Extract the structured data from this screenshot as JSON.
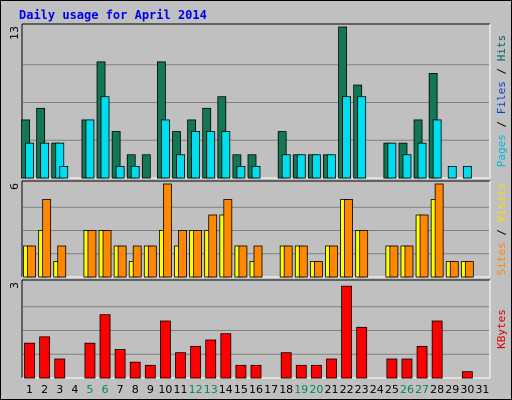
{
  "chart_data": {
    "type": "bar",
    "title": "Daily usage for April 2014",
    "categories": [
      "1",
      "2",
      "3",
      "4",
      "5",
      "6",
      "7",
      "8",
      "9",
      "10",
      "11",
      "12",
      "13",
      "14",
      "15",
      "16",
      "17",
      "18",
      "19",
      "20",
      "21",
      "22",
      "23",
      "24",
      "25",
      "26",
      "27",
      "28",
      "29",
      "30",
      "31"
    ],
    "weekend_days": [
      "5",
      "6",
      "12",
      "13",
      "19",
      "20",
      "26",
      "27"
    ],
    "panels": [
      {
        "id": "top",
        "ymax": 13,
        "ymax_label": "13",
        "side_labels": [
          {
            "text": "Hits",
            "color": "#006666"
          },
          {
            "text": " / ",
            "color": "#000000"
          },
          {
            "text": "Files",
            "color": "#0044cc"
          },
          {
            "text": " / ",
            "color": "#000000"
          },
          {
            "text": "Pages",
            "color": "#00bbdd"
          }
        ],
        "series": [
          {
            "name": "Hits",
            "color": "#117755",
            "values": [
              5,
              6,
              3,
              0,
              5,
              10,
              4,
              2,
              2,
              10,
              4,
              5,
              6,
              7,
              2,
              2,
              0,
              4,
              2,
              2,
              2,
              13,
              8,
              0,
              3,
              3,
              5,
              9,
              0,
              0,
              0
            ]
          },
          {
            "name": "Files",
            "color": "#00ddee",
            "values": [
              3,
              3,
              3,
              0,
              5,
              7,
              1,
              1,
              0,
              5,
              2,
              4,
              4,
              4,
              1,
              1,
              0,
              2,
              2,
              2,
              2,
              7,
              7,
              0,
              3,
              2,
              3,
              5,
              1,
              1,
              0
            ]
          },
          {
            "name": "Pages",
            "color": "#00ddee",
            "values": [
              0,
              0,
              1,
              0,
              0,
              0,
              0,
              0,
              0,
              0,
              0,
              0,
              0,
              0,
              0,
              0,
              0,
              0,
              0,
              0,
              0,
              0,
              0,
              0,
              0,
              0,
              0,
              0,
              0,
              0,
              0
            ]
          }
        ]
      },
      {
        "id": "middle",
        "ymax": 6,
        "ymax_label": "6",
        "side_labels": [
          {
            "text": "Visits",
            "color": "#ffdd00"
          },
          {
            "text": " / ",
            "color": "#000000"
          },
          {
            "text": "Sites",
            "color": "#ff8800"
          }
        ],
        "series": [
          {
            "name": "Visits",
            "color": "#ffff00",
            "values": [
              2,
              3,
              1,
              0,
              3,
              3,
              2,
              1,
              2,
              3,
              2,
              3,
              3,
              4,
              2,
              1,
              0,
              2,
              2,
              1,
              2,
              5,
              3,
              0,
              2,
              2,
              4,
              5,
              1,
              1,
              0
            ]
          },
          {
            "name": "Sites",
            "color": "#ff8800",
            "values": [
              2,
              5,
              2,
              0,
              3,
              3,
              2,
              2,
              2,
              6,
              3,
              3,
              4,
              5,
              2,
              2,
              0,
              2,
              2,
              1,
              2,
              5,
              3,
              0,
              2,
              2,
              4,
              6,
              1,
              1,
              0
            ]
          }
        ]
      },
      {
        "id": "bottom",
        "ymax": 3,
        "ymax_label": "3",
        "side_labels": [
          {
            "text": "KBytes",
            "color": "#dd0000"
          }
        ],
        "series": [
          {
            "name": "KBytes",
            "color": "#ff0000",
            "values": [
              1.1,
              1.3,
              0.6,
              0,
              1.1,
              2.0,
              0.9,
              0.5,
              0.4,
              1.8,
              0.8,
              1.0,
              1.2,
              1.4,
              0.4,
              0.4,
              0,
              0.8,
              0.4,
              0.4,
              0.6,
              2.9,
              1.6,
              0,
              0.6,
              0.6,
              1.0,
              1.8,
              0,
              0.2,
              0
            ]
          }
        ]
      }
    ]
  }
}
